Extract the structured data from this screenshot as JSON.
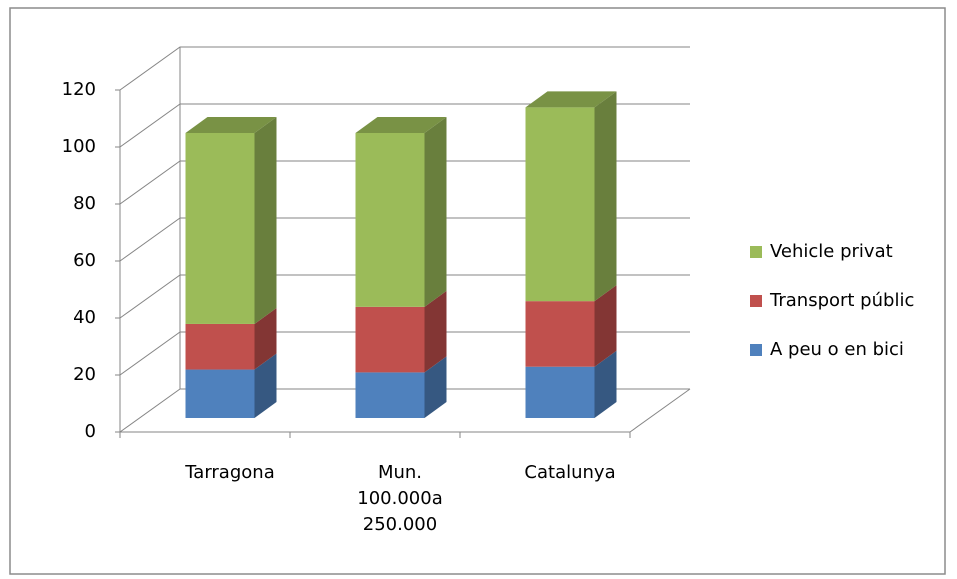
{
  "chart_data": {
    "type": "bar3d_stacked",
    "categories": [
      "Tarragona",
      "Mun. 100.000a 250.000",
      "Catalunya"
    ],
    "series": [
      {
        "name": "A peu o en bici",
        "color": "#4f81bd",
        "values": [
          17,
          16,
          18
        ]
      },
      {
        "name": "Transport públic",
        "color": "#c0504d",
        "values": [
          16,
          23,
          23
        ]
      },
      {
        "name": "Vehicle privat",
        "color": "#9bbb59",
        "values": [
          67,
          61,
          68
        ]
      }
    ],
    "ylim": [
      0,
      120
    ],
    "yticks": [
      0,
      20,
      40,
      60,
      80,
      100,
      120
    ],
    "grid": true,
    "legend": "right"
  }
}
